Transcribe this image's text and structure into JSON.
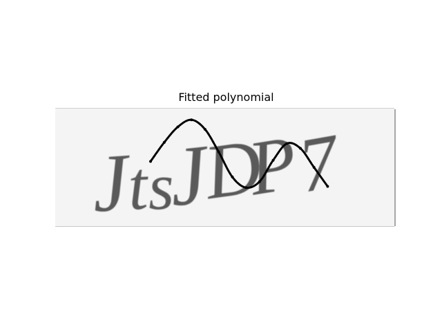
{
  "figure": {
    "title": "Fitted polynomial",
    "captcha_text": "JtsJDP7"
  },
  "colors": {
    "captcha_background": "#f4f4f4",
    "captcha_border": "#8c8c8c",
    "captcha_glyphs": "#5a5a5a",
    "curve": "#000000"
  },
  "chart_data": {
    "type": "line",
    "title": "Fitted polynomial",
    "xlabel": "",
    "ylabel": "",
    "grid": false,
    "axes_visible": false,
    "series": [
      {
        "x": [
          0.28,
          0.32,
          0.36,
          0.4,
          0.44,
          0.48,
          0.52,
          0.56,
          0.6,
          0.64,
          0.68,
          0.72,
          0.76,
          0.8
        ],
        "y": [
          0.55,
          0.71,
          0.84,
          0.9,
          0.82,
          0.63,
          0.42,
          0.33,
          0.38,
          0.56,
          0.7,
          0.66,
          0.5,
          0.34
        ]
      }
    ]
  }
}
